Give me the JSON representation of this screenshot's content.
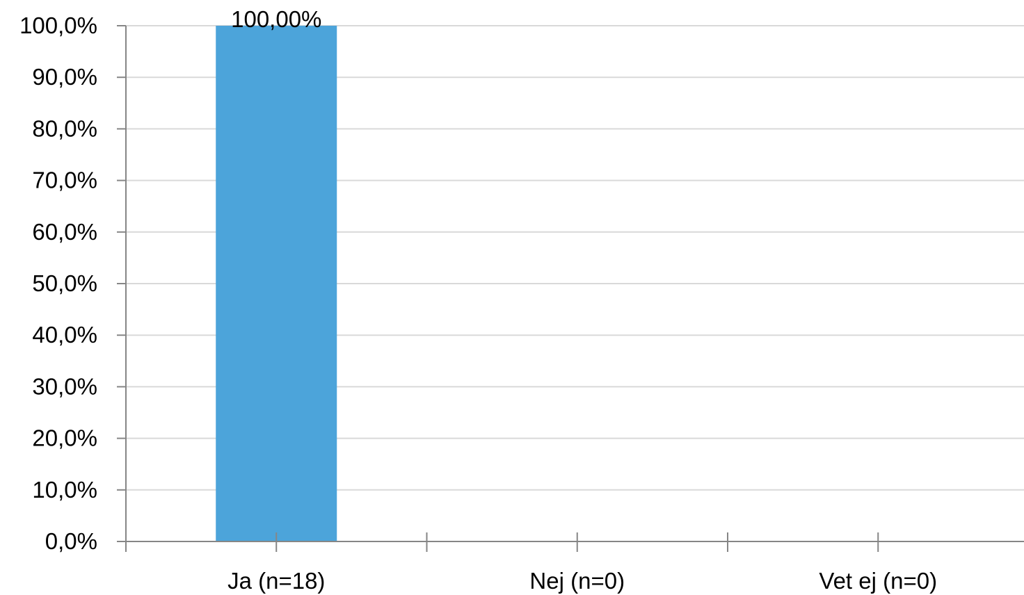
{
  "chart_data": {
    "type": "bar",
    "categories": [
      "Ja (n=18)",
      "Nej (n=0)",
      "Vet ej (n=0)"
    ],
    "values": [
      100.0,
      0.0,
      0.0
    ],
    "data_labels": [
      "100,00%",
      "",
      ""
    ],
    "y_tick_labels": [
      "0,0%",
      "10,0%",
      "20,0%",
      "30,0%",
      "40,0%",
      "50,0%",
      "60,0%",
      "70,0%",
      "80,0%",
      "90,0%",
      "100,0%"
    ],
    "y_ticks": [
      0,
      10,
      20,
      30,
      40,
      50,
      60,
      70,
      80,
      90,
      100
    ],
    "ylim": [
      0,
      100
    ],
    "title": "",
    "xlabel": "",
    "ylabel": "",
    "grid": true,
    "legend": "none",
    "colors": {
      "bar": "#4ca4da",
      "grid": "#d9d9d9",
      "axis": "#868686"
    }
  }
}
